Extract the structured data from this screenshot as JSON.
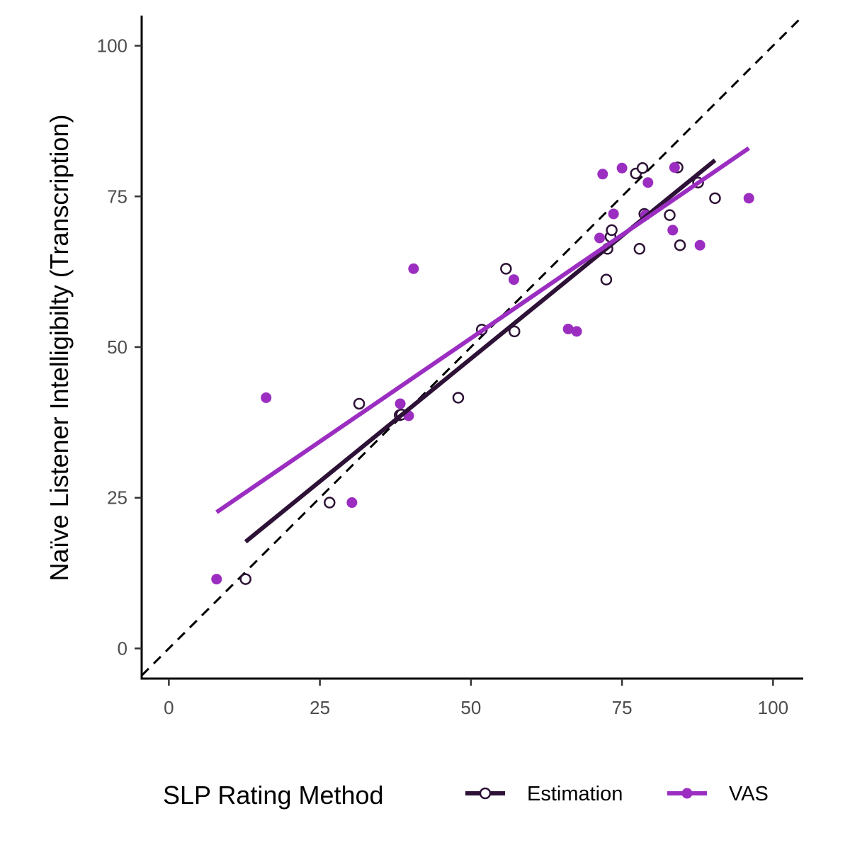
{
  "chart_data": {
    "type": "scatter",
    "xlabel": "SLP Rating Method",
    "ylabel": "Naïve Listener Intelligibilty (Transcription)",
    "xlim": [
      -4.5,
      105
    ],
    "ylim": [
      -5,
      105
    ],
    "x_ticks": [
      0,
      25,
      50,
      75,
      100
    ],
    "y_ticks": [
      0,
      25,
      50,
      75,
      100
    ],
    "x_tick_labels": [
      "0",
      "25",
      "50",
      "75",
      "100"
    ],
    "y_tick_labels": [
      "0",
      "25",
      "50",
      "75",
      "100"
    ],
    "grid": false,
    "identity_line": true,
    "legend": {
      "title": "SLP Rating Method",
      "position": "bottom",
      "entries": [
        "Estimation",
        "VAS"
      ]
    },
    "series": [
      {
        "name": "Estimation",
        "color": "#2d1136",
        "marker": "open-circle",
        "points": [
          [
            12.7,
            11.5
          ],
          [
            26.6,
            24.2
          ],
          [
            31.5,
            40.6
          ],
          [
            38.2,
            38.7
          ],
          [
            38.5,
            38.8
          ],
          [
            47.9,
            41.6
          ],
          [
            51.8,
            52.9
          ],
          [
            55.8,
            63.0
          ],
          [
            57.2,
            52.6
          ],
          [
            72.4,
            61.2
          ],
          [
            72.6,
            66.3
          ],
          [
            73.1,
            68.3
          ],
          [
            73.3,
            69.4
          ],
          [
            77.3,
            78.8
          ],
          [
            77.9,
            66.3
          ],
          [
            78.4,
            79.7
          ],
          [
            78.7,
            72.1
          ],
          [
            82.9,
            71.9
          ],
          [
            84.2,
            79.8
          ],
          [
            84.6,
            66.9
          ],
          [
            87.6,
            77.3
          ],
          [
            90.4,
            74.7
          ]
        ],
        "fit": {
          "x": [
            12.7,
            90.4
          ],
          "y": [
            17.7,
            81.0
          ]
        }
      },
      {
        "name": "VAS",
        "color": "#9b2ec1",
        "marker": "filled-circle",
        "points": [
          [
            7.9,
            11.5
          ],
          [
            16.1,
            41.6
          ],
          [
            30.3,
            24.2
          ],
          [
            38.3,
            40.6
          ],
          [
            39.7,
            38.6
          ],
          [
            40.5,
            63.0
          ],
          [
            57.1,
            61.2
          ],
          [
            66.1,
            53.0
          ],
          [
            67.5,
            52.6
          ],
          [
            71.3,
            68.1
          ],
          [
            71.8,
            78.7
          ],
          [
            73.6,
            72.1
          ],
          [
            75.0,
            79.7
          ],
          [
            78.9,
            71.9
          ],
          [
            79.3,
            77.3
          ],
          [
            83.4,
            69.4
          ],
          [
            83.7,
            79.8
          ],
          [
            87.9,
            66.9
          ],
          [
            96.0,
            74.7
          ]
        ],
        "fit": {
          "x": [
            7.9,
            96.0
          ],
          "y": [
            22.6,
            83.0
          ]
        }
      }
    ]
  }
}
